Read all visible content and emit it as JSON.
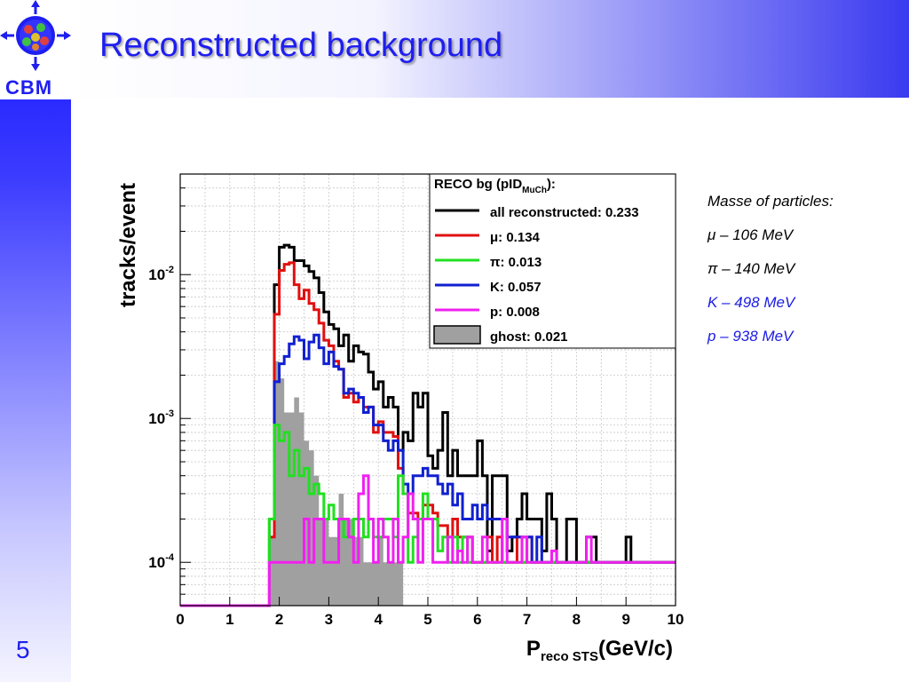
{
  "slide": {
    "title": "Reconstructed background",
    "logo_text": "CBM",
    "page_number": "5",
    "colors": {
      "title": "#1e1ef0",
      "band": "#1414ff"
    }
  },
  "info": {
    "heading": "Masse of particles:",
    "lines": [
      {
        "text": "μ – 106 MeV",
        "color": "#000000"
      },
      {
        "text": "π – 140 MeV",
        "color": "#000000"
      },
      {
        "text": "K – 498 MeV",
        "color": "#1a1ae6"
      },
      {
        "text": "p – 938 MeV",
        "color": "#1a1ae6"
      }
    ]
  },
  "chart_data": {
    "type": "histogram",
    "y_scale": "log",
    "ylabel": "tracks/event",
    "xlabel_main": "P",
    "xlabel_sub": "reco STS",
    "xlabel_unit": "(GeV/c)",
    "xlim": [
      0,
      10
    ],
    "ylim": [
      5e-05,
      0.05
    ],
    "x_ticks": [
      "0",
      "1",
      "2",
      "3",
      "4",
      "5",
      "6",
      "7",
      "8",
      "9",
      "10"
    ],
    "y_ticks": [
      {
        "value": 0.01,
        "base": "10",
        "exp": "-2"
      },
      {
        "value": 0.001,
        "base": "10",
        "exp": "-3"
      },
      {
        "value": 0.0001,
        "base": "10",
        "exp": "-4"
      }
    ],
    "bin_width": 0.1,
    "x_start": 0,
    "grid": true,
    "legend": {
      "title_main": "RECO bg (pID",
      "title_sub": "MuCh",
      "title_end": "):",
      "position": "top-right",
      "entries": [
        {
          "label": "all reconstructed: 0.233",
          "color": "#000000",
          "kind": "line"
        },
        {
          "label": "μ: 0.134",
          "color": "#e01010",
          "kind": "line"
        },
        {
          "label": "π: 0.013",
          "color": "#20e020",
          "kind": "line"
        },
        {
          "label": "K: 0.057",
          "color": "#1020d0",
          "kind": "line"
        },
        {
          "label": "p: 0.008",
          "color": "#f020f0",
          "kind": "line"
        },
        {
          "label": "ghost: 0.021",
          "color": "#a0a0a0",
          "kind": "fill"
        }
      ]
    },
    "series": [
      {
        "name": "ghost",
        "color": "#a0a0a0",
        "fill": true,
        "values": [
          0,
          0,
          0,
          0,
          0,
          0,
          0,
          0,
          0,
          0,
          0,
          0,
          0,
          0,
          0,
          0,
          0,
          0,
          0.00015,
          0.0025,
          0.0019,
          0.0011,
          0.0011,
          0.0014,
          0.0011,
          0.0007,
          0.0006,
          0.0004,
          0.0002,
          0.0002,
          0.00015,
          0.00015,
          0.0003,
          0.0002,
          0.0002,
          0.00015,
          0.00015,
          0.0001,
          0.0001,
          0.0001,
          0.00015,
          0.0001,
          0.0001,
          0.0001,
          0.0001,
          0,
          0,
          0,
          0,
          0,
          0,
          0,
          0,
          0,
          0,
          0,
          0,
          0,
          0,
          0,
          0,
          0,
          0,
          0,
          0,
          0,
          0,
          0,
          0,
          0,
          0,
          0,
          0,
          0,
          0,
          0,
          0,
          0,
          0,
          0,
          0,
          0,
          0,
          0,
          0,
          0,
          0,
          0,
          0,
          0,
          0,
          0,
          0,
          0,
          0,
          0,
          0,
          0,
          0,
          0
        ]
      },
      {
        "name": "all reconstructed",
        "color": "#000000",
        "values": [
          0,
          0,
          0,
          0,
          0,
          0,
          0,
          0,
          0,
          0,
          0,
          0,
          0,
          0,
          0,
          0,
          0,
          0,
          0.0002,
          0.0085,
          0.0155,
          0.016,
          0.0155,
          0.0125,
          0.0125,
          0.0115,
          0.0105,
          0.0095,
          0.0075,
          0.0055,
          0.0045,
          0.0042,
          0.0032,
          0.0038,
          0.0025,
          0.0032,
          0.0029,
          0.0028,
          0.0021,
          0.0016,
          0.0018,
          0.0012,
          0.0014,
          0.0012,
          0.0006,
          0.0008,
          0.0007,
          0.0015,
          0.0012,
          0.0015,
          0.00055,
          0.00045,
          0.0006,
          0.0011,
          0.0004,
          0.0006,
          0.0004,
          0.0004,
          0.0004,
          0.0004,
          0.0007,
          0.0004,
          0.00012,
          0.0004,
          0.0004,
          0.0004,
          0.00012,
          0.00015,
          0.0002,
          0.0003,
          0.0002,
          0.0002,
          0.0002,
          0.00012,
          0.0003,
          0.0002,
          0.0001,
          0.0001,
          0.0002,
          0.0002,
          0.0001,
          0.0001,
          0.00015,
          0.00015,
          0.0001,
          0.0001,
          0.0001,
          0.0001,
          0.0001,
          0.0001,
          0.00015,
          0.0001,
          0.0001,
          0.0001,
          0.0001,
          0.0001,
          0.0001,
          0.0001,
          0.0001,
          0.0001
        ]
      },
      {
        "name": "μ",
        "color": "#e01010",
        "values": [
          0,
          0,
          0,
          0,
          0,
          0,
          0,
          0,
          0,
          0,
          0,
          0,
          0,
          0,
          0,
          0,
          0,
          0,
          0.00015,
          0.0053,
          0.0107,
          0.0118,
          0.0121,
          0.0085,
          0.0068,
          0.0078,
          0.0063,
          0.0057,
          0.0046,
          0.0035,
          0.0032,
          0.0025,
          0.0022,
          0.0014,
          0.0015,
          0.0013,
          0.0014,
          0.0012,
          0.0012,
          0.0008,
          0.00095,
          0.0008,
          0.0008,
          0.00075,
          0.00045,
          0.0003,
          0.00022,
          0.00022,
          0.0002,
          0.00025,
          0.00025,
          0.00022,
          0.00018,
          0.00018,
          0.00015,
          0.0002,
          0.00015,
          0.00015,
          0.00015,
          0.0001,
          0.0001,
          0.0001,
          0.00015,
          0.0001,
          0.00015,
          0.0001,
          0.0001,
          0.0001,
          0.00015,
          0.0001,
          0.00015,
          0.0001,
          0.0001,
          0.0001,
          0.0001,
          0.0001,
          0.0001,
          0.0001,
          0.0001,
          0.0001,
          0.0001,
          0.0001,
          0.0001,
          0.0001,
          0.0001,
          0.0001,
          0.0001,
          0.0001,
          0.0001,
          0.0001,
          0.0001,
          0.0001,
          0.0001,
          0.0001,
          0.0001,
          0.0001,
          0.0001,
          0.0001,
          0.0001,
          0.0001
        ]
      },
      {
        "name": "K",
        "color": "#1020d0",
        "values": [
          0,
          0,
          0,
          0,
          0,
          0,
          0,
          0,
          0,
          0,
          0,
          0,
          0,
          0,
          0,
          0,
          0,
          0,
          0.0002,
          0.0018,
          0.0024,
          0.0027,
          0.0033,
          0.0037,
          0.0035,
          0.0026,
          0.0034,
          0.0038,
          0.0031,
          0.0024,
          0.0029,
          0.0023,
          0.0022,
          0.0015,
          0.0016,
          0.0015,
          0.0014,
          0.0011,
          0.0012,
          0.0009,
          0.0009,
          0.0007,
          0.0006,
          0.0007,
          0.0006,
          0.00035,
          0.0003,
          0.0004,
          0.0004,
          0.00045,
          0.0004,
          0.0004,
          0.00035,
          0.0003,
          0.00035,
          0.00025,
          0.0003,
          0.0002,
          0.0002,
          0.00025,
          0.0002,
          0.00025,
          0.0002,
          0.0002,
          0.0002,
          0.0002,
          0.00015,
          0.00015,
          0.00015,
          0.00015,
          0.00015,
          0.0001,
          0.00015,
          0.0001,
          0.0001,
          0.0001,
          0.0001,
          0.0001,
          0.0001,
          0.0001,
          0.0001,
          0.0001,
          0.0001,
          0.0001,
          0.0001,
          0.0001,
          0.0001,
          0.0001,
          0.0001,
          0.0001,
          0.0001,
          0.0001,
          0.0001,
          0.0001,
          0.0001,
          0.0001,
          0.0001,
          0.0001,
          0.0001,
          0.0001
        ]
      },
      {
        "name": "π",
        "color": "#20e020",
        "values": [
          0,
          0,
          0,
          0,
          0,
          0,
          0,
          0,
          0,
          0,
          0,
          0,
          0,
          0,
          0,
          0,
          0,
          0,
          0.0002,
          0.0009,
          0.0007,
          0.0008,
          0.0004,
          0.0006,
          0.0004,
          0.00045,
          0.0003,
          0.00035,
          0.0003,
          0.0002,
          0.00025,
          0.0002,
          0.0002,
          0.00015,
          0.00015,
          0.0002,
          0.0002,
          0.00015,
          0.0002,
          0.00015,
          0.00015,
          0.0002,
          0.0002,
          0.00015,
          0.0004,
          0.0003,
          0.0001,
          0.00015,
          0.0002,
          0.0003,
          0.0002,
          0.0002,
          0.00012,
          0.00015,
          0.0001,
          0.00015,
          0.0001,
          0.00015,
          0.0001,
          0.0001,
          0.0001,
          0.0001,
          0.0001,
          0.0001,
          0.0001,
          0.0001,
          0.0001,
          0.0001,
          0.0001,
          0.0001,
          0.0001,
          0.0001,
          0.0001,
          0.0001,
          0.0001,
          0.0001,
          0.0001,
          0.0001,
          0.0001,
          0.0001,
          0.0001,
          0.0001,
          0.0001,
          0.0001,
          0.0001,
          0.0001,
          0.0001,
          0.0001,
          0.0001,
          0.0001,
          0.0001,
          0.0001,
          0.0001,
          0.0001,
          0.0001,
          0.0001,
          0.0001,
          0.0001,
          0.0001,
          0.0001
        ]
      },
      {
        "name": "p",
        "color": "#f020f0",
        "values": [
          0,
          0,
          0,
          0,
          0,
          0,
          0,
          0,
          0,
          0,
          0,
          0,
          0,
          0,
          0,
          0,
          0,
          0,
          0.0001,
          0.0001,
          0.0001,
          0.0001,
          0.0001,
          0.0001,
          0.0001,
          0.0002,
          0.0001,
          0.0002,
          0.0002,
          0.0001,
          0.0001,
          0.0001,
          0.0002,
          0.0002,
          0.00015,
          0.0001,
          0.0003,
          0.0004,
          0.0002,
          0.0001,
          0.0002,
          0.00015,
          0.0001,
          0.0002,
          0.0001,
          0.00015,
          0.0003,
          0.0002,
          0.0001,
          0.0002,
          0.0002,
          0.0001,
          0.0001,
          0.0001,
          0.00015,
          0.0001,
          0.00012,
          0.0001,
          0.00015,
          0.0001,
          0.0001,
          0.00015,
          0.0001,
          0.0001,
          0.0001,
          0.0002,
          0.0001,
          0.0001,
          0.0001,
          0.00015,
          0.0001,
          0.0001,
          0.0001,
          0.0001,
          0.0001,
          0.00012,
          0.0001,
          0.0001,
          0.0001,
          0.0001,
          0.0001,
          0.0001,
          0.00015,
          0.0001,
          0.0001,
          0.0001,
          0.0001,
          0.0001,
          0.0001,
          0.0001,
          0.0001,
          0.0001,
          0.0001,
          0.0001,
          0.0001,
          0.0001,
          0.0001,
          0.0001,
          0.0001,
          0.0001
        ]
      }
    ]
  }
}
